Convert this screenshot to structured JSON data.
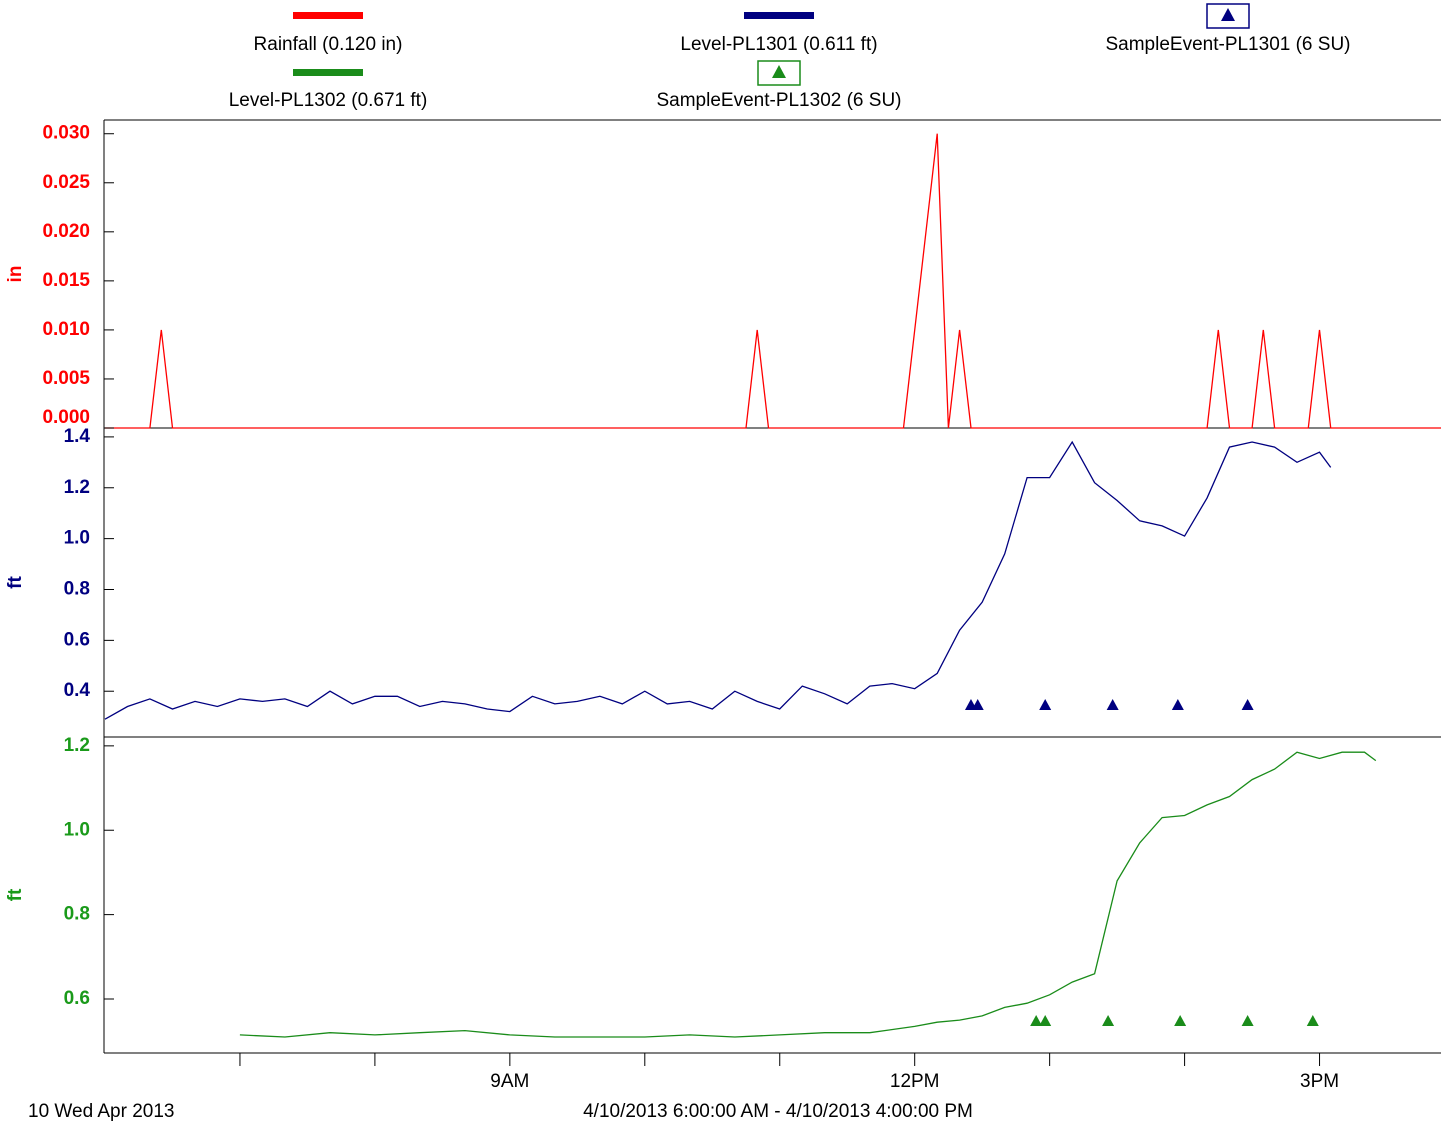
{
  "x_axis": {
    "xlim": [
      6,
      15.9
    ],
    "xticks": [
      {
        "value": 9,
        "label": "9AM"
      },
      {
        "value": 12,
        "label": "12PM"
      },
      {
        "value": 15,
        "label": "3PM"
      }
    ],
    "minor_xticks": [
      7,
      8,
      10,
      11,
      13,
      14
    ],
    "date_label": "10 Wed Apr 2013",
    "range_label": "4/10/2013 6:00:00 AM - 4/10/2013 4:00:00 PM"
  },
  "chart_data": [
    {
      "type": "line",
      "y_label": "in",
      "color": "#ff0000",
      "ylim": [
        0,
        0.0314
      ],
      "yticks": [
        {
          "value": 0,
          "label": "0.000"
        },
        0.005,
        {
          "value": 0.01,
          "label": "0.010"
        },
        0.015,
        {
          "value": 0.02,
          "label": "0.020"
        },
        0.025,
        {
          "value": 0.03,
          "label": "0.030"
        }
      ],
      "series": [
        {
          "name": "Rainfall (0.120 in)",
          "color": "#ff0000",
          "style": "line",
          "x": [
            6,
            6.333,
            6.417,
            6.5,
            10.75,
            10.833,
            10.917,
            11.917,
            12.167,
            12.25,
            12.333,
            12.417,
            14.167,
            14.25,
            14.333,
            14.5,
            14.583,
            14.667,
            14.917,
            15,
            15.083,
            15.9
          ],
          "values": [
            0,
            0,
            0.01,
            0,
            0,
            0.01,
            0,
            0,
            0.03,
            0,
            0.01,
            0,
            0,
            0.01,
            0,
            0,
            0.01,
            0,
            0,
            0.01,
            0,
            0
          ]
        }
      ]
    },
    {
      "type": "line",
      "y_label": "ft",
      "color": "#000080",
      "ylim": [
        0.22,
        1.435
      ],
      "yticks": [
        0.4,
        0.6,
        0.8,
        {
          "value": 1,
          "label": "1.0"
        },
        1.2,
        1.4
      ],
      "series": [
        {
          "name": "Level-PL1301 (0.611 ft)",
          "color": "#000080",
          "style": "line",
          "x": [
            6,
            6.167,
            6.333,
            6.5,
            6.667,
            6.833,
            7,
            7.167,
            7.333,
            7.5,
            7.667,
            7.833,
            8,
            8.167,
            8.333,
            8.5,
            8.667,
            8.833,
            9,
            9.167,
            9.333,
            9.5,
            9.667,
            9.833,
            10,
            10.167,
            10.333,
            10.5,
            10.667,
            10.833,
            11,
            11.167,
            11.333,
            11.5,
            11.667,
            11.833,
            12,
            12.167,
            12.333,
            12.5,
            12.667,
            12.833,
            13,
            13.167,
            13.333,
            13.5,
            13.667,
            13.833,
            14,
            14.167,
            14.333,
            14.5,
            14.667,
            14.833,
            15,
            15.083
          ],
          "values": [
            0.29,
            0.34,
            0.37,
            0.33,
            0.36,
            0.34,
            0.37,
            0.36,
            0.37,
            0.34,
            0.4,
            0.35,
            0.38,
            0.38,
            0.34,
            0.36,
            0.35,
            0.33,
            0.32,
            0.38,
            0.35,
            0.36,
            0.38,
            0.35,
            0.4,
            0.35,
            0.36,
            0.33,
            0.4,
            0.36,
            0.33,
            0.42,
            0.39,
            0.35,
            0.42,
            0.43,
            0.41,
            0.47,
            0.64,
            0.75,
            0.94,
            1.24,
            1.24,
            1.38,
            1.22,
            1.15,
            1.07,
            1.05,
            1.01,
            1.16,
            1.36,
            1.38,
            1.36,
            1.3,
            1.34,
            1.28
          ]
        },
        {
          "name": "SampleEvent-PL1301 (6 SU)",
          "color": "#000080",
          "style": "triangle",
          "x": [
            12.417,
            12.467,
            12.967,
            13.467,
            13.95,
            14.467
          ]
        }
      ]
    },
    {
      "type": "line",
      "y_label": "ft",
      "color": "#1a9a1a",
      "ylim": [
        0.472,
        1.221
      ],
      "yticks": [
        0.6,
        0.8,
        {
          "value": 1,
          "label": "1.0"
        },
        1.2
      ],
      "series": [
        {
          "name": "Level-PL1302 (0.671 ft)",
          "color": "#1a8c1a",
          "style": "line",
          "x": [
            7,
            7.333,
            7.667,
            8,
            8.333,
            8.667,
            9,
            9.333,
            9.667,
            10,
            10.333,
            10.667,
            11,
            11.333,
            11.667,
            12,
            12.167,
            12.333,
            12.5,
            12.667,
            12.833,
            13,
            13.167,
            13.333,
            13.5,
            13.667,
            13.833,
            14,
            14.167,
            14.333,
            14.5,
            14.667,
            14.833,
            15,
            15.167,
            15.333,
            15.417
          ],
          "values": [
            0.515,
            0.51,
            0.52,
            0.515,
            0.52,
            0.525,
            0.515,
            0.51,
            0.51,
            0.51,
            0.515,
            0.51,
            0.515,
            0.52,
            0.52,
            0.535,
            0.545,
            0.55,
            0.56,
            0.58,
            0.59,
            0.61,
            0.64,
            0.66,
            0.88,
            0.97,
            1.03,
            1.035,
            1.06,
            1.08,
            1.12,
            1.145,
            1.185,
            1.17,
            1.185,
            1.185,
            1.165
          ]
        },
        {
          "name": "SampleEvent-PL1302 (6 SU)",
          "color": "#1a8c1a",
          "style": "triangle",
          "x": [
            12.9,
            12.967,
            13.433,
            13.967,
            14.467,
            14.95
          ]
        }
      ]
    }
  ]
}
